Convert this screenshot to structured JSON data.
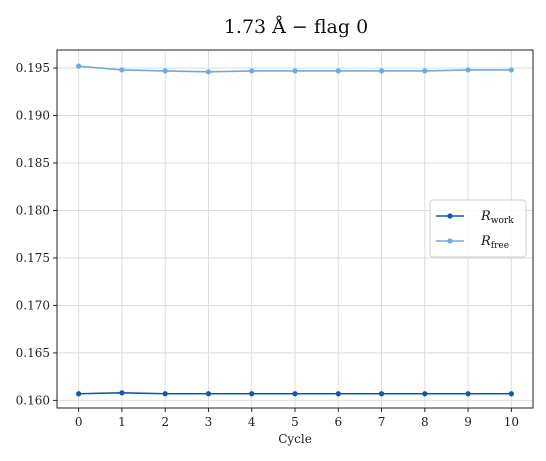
{
  "chart_data": {
    "type": "line",
    "title": "1.73 Å  −  flag 0",
    "xlabel": "Cycle",
    "ylabel": "",
    "x": [
      0,
      1,
      2,
      3,
      4,
      5,
      6,
      7,
      8,
      9,
      10
    ],
    "xticks": [
      "0",
      "1",
      "2",
      "3",
      "4",
      "5",
      "6",
      "7",
      "8",
      "9",
      "10"
    ],
    "yticks": [
      "0.160",
      "0.165",
      "0.170",
      "0.175",
      "0.180",
      "0.185",
      "0.190",
      "0.195"
    ],
    "ylim": [
      0.1592,
      0.1969
    ],
    "xlim": [
      -0.5,
      10.5
    ],
    "grid": true,
    "legend_position": "center-right",
    "series": [
      {
        "name": "R",
        "subscript": "work",
        "color": "#0b5aad",
        "values": [
          0.1607,
          0.1608,
          0.1607,
          0.1607,
          0.1607,
          0.1607,
          0.1607,
          0.1607,
          0.1607,
          0.1607,
          0.1607
        ]
      },
      {
        "name": "R",
        "subscript": "free",
        "color": "#6eaae0",
        "values": [
          0.1952,
          0.1948,
          0.1947,
          0.1946,
          0.1947,
          0.1947,
          0.1947,
          0.1947,
          0.1947,
          0.1948,
          0.1948
        ]
      }
    ]
  }
}
